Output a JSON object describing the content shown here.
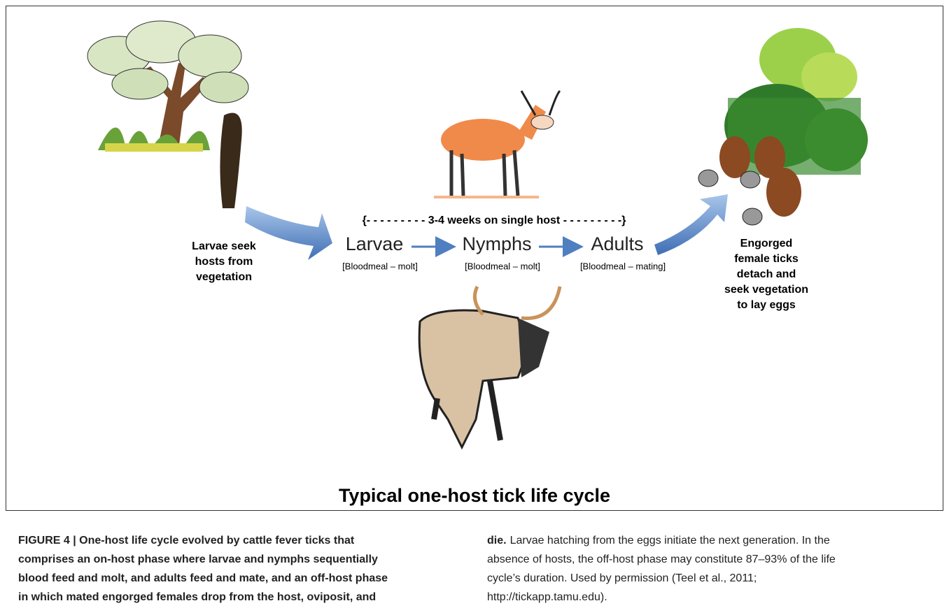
{
  "figure": {
    "left_label": [
      "Larvae seek",
      "hosts from",
      "vegetation"
    ],
    "on_host_span": "{- - - - - - - - -  3-4 weeks on single host - - - - - - - - -}",
    "stages": [
      {
        "name": "Larvae",
        "note": "[Bloodmeal – molt]"
      },
      {
        "name": "Nymphs",
        "note": "[Bloodmeal – molt]"
      },
      {
        "name": "Adults",
        "note": "[Bloodmeal – mating]"
      }
    ],
    "right_label": [
      "Engorged",
      "female ticks",
      "detach and",
      "seek vegetation",
      "to lay eggs"
    ],
    "title": "Typical one-host tick life cycle"
  },
  "caption": {
    "left_column": [
      "FIGURE 4 | One-host life cycle evolved by cattle fever ticks that",
      "comprises an on-host phase where larvae and nymphs sequentially",
      "blood feed and molt, and adults feed and mate, and an off-host phase",
      "in which mated engorged females drop from the host, oviposit, and"
    ],
    "right_lead": "die.",
    "right_column": [
      "Larvae hatching from the eggs initiate the next generation. In the",
      "absence of hosts, the off-host phase may constitute 87–93% of the life",
      "cycle’s duration. Used by permission (Teel et al., 2011;",
      "http://tickapp.tamu.edu)."
    ]
  }
}
